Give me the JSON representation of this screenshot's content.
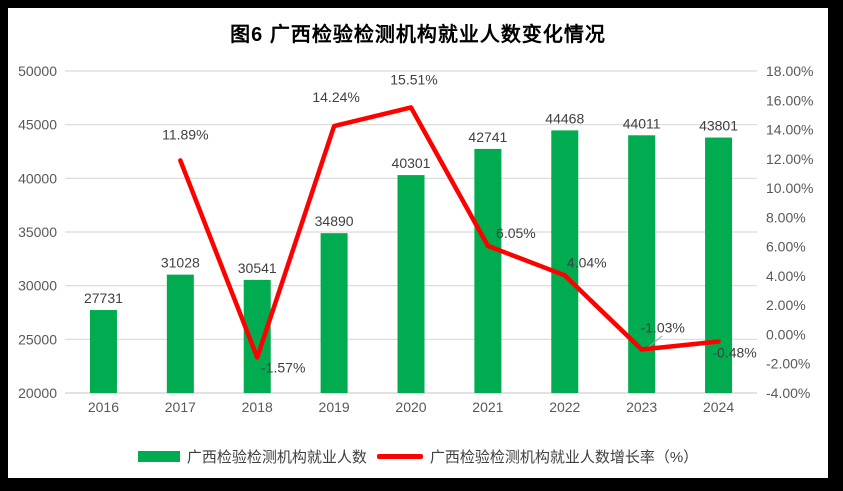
{
  "title": "图6  广西检验检测机构就业人数变化情况",
  "chart_data": {
    "type": "bar+line combo",
    "categories": [
      "2016",
      "2017",
      "2018",
      "2019",
      "2020",
      "2021",
      "2022",
      "2023",
      "2024"
    ],
    "series": [
      {
        "name": "广西检验检测机构就业人数",
        "type": "bar",
        "axis": "left",
        "color": "#00AC4F",
        "values": [
          27731,
          31028,
          30541,
          34890,
          40301,
          42741,
          44468,
          44011,
          43801
        ],
        "data_labels": [
          "27731",
          "31028",
          "30541",
          "34890",
          "40301",
          "42741",
          "44468",
          "44011",
          "43801"
        ]
      },
      {
        "name": "广西检验检测机构就业人数增长率（%）",
        "type": "line",
        "axis": "right",
        "color": "#FE0000",
        "values": [
          null,
          11.89,
          -1.57,
          14.24,
          15.51,
          6.05,
          4.04,
          -1.03,
          -0.48
        ],
        "data_labels": [
          "",
          "11.89%",
          "-1.57%",
          "14.24%",
          "15.51%",
          "6.05%",
          "4.04%",
          "-1.03%",
          "-0.48%"
        ]
      }
    ],
    "left_axis": {
      "min": 20000,
      "max": 50000,
      "step": 5000,
      "tick_labels_top_to_bottom": [
        "50000",
        "45000",
        "40000",
        "35000",
        "30000",
        "25000",
        "20000"
      ]
    },
    "right_axis": {
      "min": -4,
      "max": 18,
      "step": 2,
      "tick_labels_top_to_bottom": [
        "18.00%",
        "16.00%",
        "14.00%",
        "12.00%",
        "10.00%",
        "8.00%",
        "6.00%",
        "4.00%",
        "2.00%",
        "0.00%",
        "-2.00%",
        "-4.00%"
      ]
    },
    "grid": true,
    "legend_position": "bottom"
  },
  "legend": {
    "items": [
      {
        "label": "广西检验检测机构就业人数",
        "swatch": "bar",
        "color": "#00AC4F"
      },
      {
        "label": "广西检验检测机构就业人数增长率（%）",
        "swatch": "line",
        "color": "#FE0000"
      }
    ]
  },
  "colors": {
    "frame": "#000000",
    "panel": "#ffffff",
    "grid": "#D9D9D9",
    "axis_tick_text": "#595959",
    "data_label_text": "#404040",
    "title_text": "#000000"
  }
}
